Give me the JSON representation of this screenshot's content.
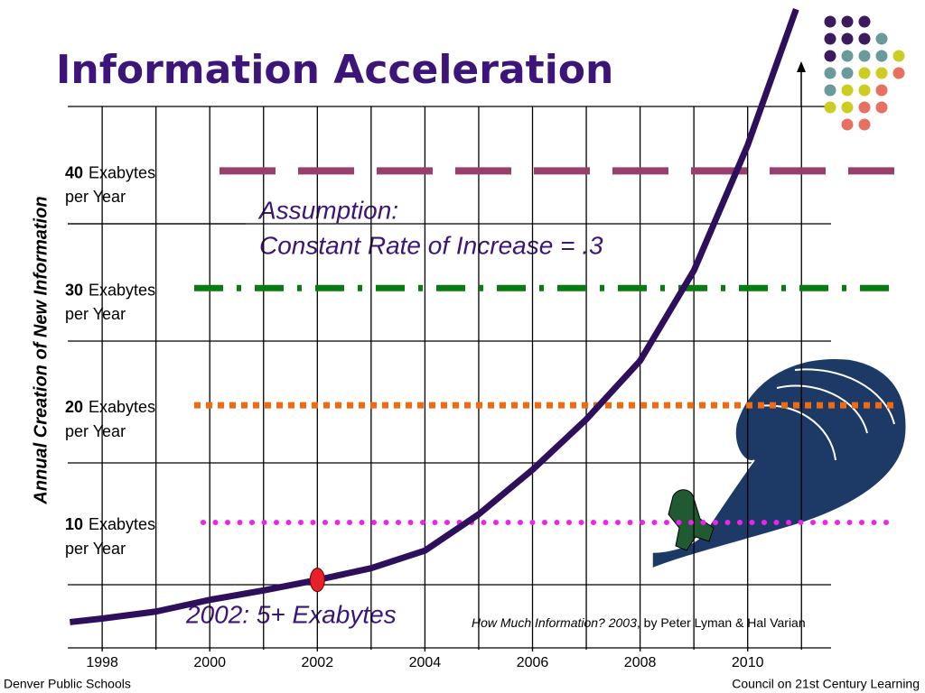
{
  "chart_data": {
    "type": "line",
    "title": "Information Acceleration",
    "ylabel": "Annual Creation of New Information",
    "x": [
      1997.4,
      1998,
      1999,
      2000,
      2001,
      2002,
      2003,
      2004,
      2005,
      2006,
      2007,
      2008,
      2009,
      2010,
      2010.9
    ],
    "series": [
      {
        "color": "#2e0f5c",
        "values": [
          1.5,
          1.8,
          2.4,
          3.4,
          4.2,
          5.1,
          6.1,
          7.6,
          10.7,
          14.5,
          18.8,
          23.8,
          31.5,
          42.2,
          53.8
        ]
      }
    ],
    "highlight_index": 5,
    "xlim": [
      1997.36,
      2011.55
    ],
    "xticks": [
      1998,
      2000,
      2002,
      2004,
      2006,
      2008,
      2010
    ],
    "ylim": [
      -0.7,
      45.5
    ],
    "reference_lines": [
      {
        "value": 40,
        "unit": "Exabytes",
        "rate": "per Year",
        "color": "#983f6e",
        "style": "dash"
      },
      {
        "value": 30,
        "unit": "Exabytes",
        "rate": "per Year",
        "color": "#0a7a12",
        "style": "dashdot"
      },
      {
        "value": 20,
        "unit": "Exabytes",
        "rate": "per Year",
        "color": "#f06a10",
        "style": "square"
      },
      {
        "value": 10,
        "unit": "Exabytes",
        "rate": "per Year",
        "color": "#ee22ee",
        "style": "dot"
      }
    ],
    "annotations": {
      "assumption": "Assumption:",
      "rate": "Constant Rate of Increase = .3",
      "highlight": "2002: 5+ Exabytes",
      "source_title": "How Much Information? 2003",
      "source_authors": ", by Peter Lyman & Hal Varian"
    },
    "footer_left": "Denver Public Schools",
    "footer_right": "Council on 21st Century Learning"
  }
}
